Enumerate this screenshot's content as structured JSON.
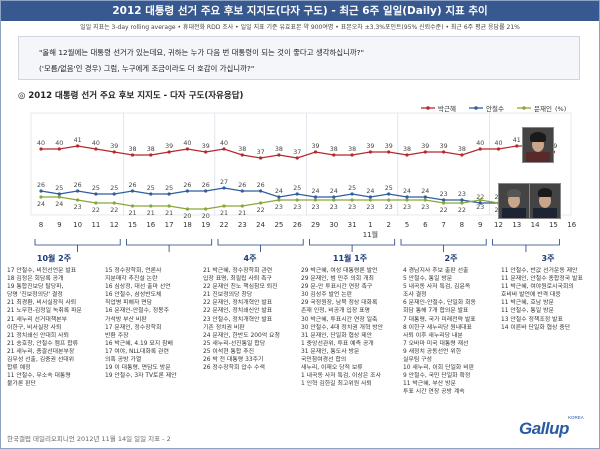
{
  "header": {
    "title": "2012 대통령 선거 주요 후보 지지도(다자 구도) - 최근 6주 일일(Daily) 지표 추이",
    "note": "일일 지표는 3-day rolling average • 휴대전화 RDD 조사 • 일일 지표 기준 유효표본 약 900여명 • 표본오차 ±3.3%포인트(95% 신뢰수준) • 최근 6주 평균 응답률 21%"
  },
  "question": {
    "line1": "\"올해 12월에는 대통령 선거가 있는데요, 귀하는 누가 다음 번 대통령이 되는 것이 좋다고 생각하십니까?\"",
    "line2": "('모름/없음'인 경우) 그럼, 누구에게 조금이라도 더 호감이 가십니까?\""
  },
  "chart_title": "◎ 2012 대통령 선거 주요 후보 지지도 - 다자 구도(자유응답)",
  "chart_data": {
    "type": "line",
    "x": [
      "8",
      "9",
      "10",
      "11",
      "12",
      "15",
      "16",
      "17",
      "18",
      "19",
      "22",
      "23",
      "24",
      "25",
      "26",
      "29",
      "30",
      "31",
      "1",
      "2",
      "5",
      "6",
      "7",
      "8",
      "9",
      "12",
      "13",
      "14",
      "15",
      "16"
    ],
    "month_marker": {
      "label": "11월",
      "index": 18
    },
    "unit": "(%)",
    "series": [
      {
        "name": "박근혜",
        "color": "#b5282e",
        "values": [
          40,
          40,
          41,
          40,
          39,
          38,
          38,
          39,
          40,
          39,
          40,
          38,
          37,
          38,
          37,
          39,
          38,
          38,
          39,
          39,
          38,
          39,
          39,
          38,
          40,
          40,
          41,
          41,
          39,
          null
        ]
      },
      {
        "name": "안철수",
        "color": "#2e5e9e",
        "values": [
          26,
          25,
          26,
          25,
          25,
          26,
          25,
          25,
          26,
          26,
          27,
          26,
          26,
          24,
          25,
          24,
          24,
          25,
          24,
          25,
          24,
          24,
          23,
          23,
          22,
          22,
          22,
          21,
          21,
          null
        ]
      },
      {
        "name": "문재인",
        "color": "#8aa63a",
        "values": [
          24,
          24,
          23,
          22,
          22,
          21,
          21,
          21,
          20,
          20,
          21,
          21,
          22,
          23,
          23,
          23,
          23,
          23,
          23,
          23,
          23,
          23,
          22,
          22,
          23,
          22,
          22,
          24,
          23,
          null
        ]
      }
    ]
  },
  "events": [
    {
      "head": "10월 2주",
      "items": [
        "17 안철수, 비전선언문 발표",
        "18 김정은 회담록 공개",
        "19 통합진보당 탈당파,",
        "당명 '진보정의당' 결정",
        "21 최경환, 비서실장직 사퇴",
        "21 노무현-김정일 녹취록 파문",
        "21 새누리 선거대책본부",
        "이한구, 비서실장 사퇴",
        "21 정치쇄신 안대희 사퇴",
        "21 송호창, 안철수 캠프 합류",
        "21 새누리, 총괄선대본부장",
        "김무성 선출, 김중권 선대위",
        "합류 예정",
        "11 안철수, 무소속 대통령",
        "불가론 판단"
      ]
    },
    {
      "head": "",
      "items": [
        "15 정수장학회, 언론사",
        "지분매각 추진설 논란",
        "16 심상정, 대선 출마 선언",
        "16 안철수, 삼성반도체",
        "직업병 피해자 면담",
        "16 문재인-안철수, 정봉주",
        "가석방 부산 비판",
        "17 문재인, 정수장학회",
        "반환 주장",
        "16 박근혜, 4.19 묘지 참배",
        "17 여야, NLL대화록 관련",
        "의혹 공방 가열",
        "19 이 대통령, 면담도 방문",
        "19 안철수, 3자 TV토론 제안"
      ]
    },
    {
      "head": "4주",
      "items": [
        "21 박근혜, 정수장학회 관련",
        "입장 표명, 최필립 사퇴 촉구",
        "22 문재인 친노 핵심참모 퇴진",
        "21 진보정의당 창당",
        "22 문재인, 정치개혁안 발표",
        "22 문재인, 정치쇄신안 발표",
        "23 안철수, 정치개혁안 발표",
        "기존 정치권 비판",
        "24 문재인, 한반도 200억 요청",
        "25 새누리-선진통일 합당",
        "25 이석현 통합 추진",
        "26 박 전 대통령 33주기",
        "26 정수장학회 압수 수색"
      ]
    },
    {
      "head": "11월 1주",
      "items": [
        "29 박근혜, 여성 대통령론 발언",
        "29 문재인, 범 민주 의회 개최",
        "29 문-안 투표시간 연장 촉구",
        "30 김성주 발언 논란",
        "29 국정원장, 남북 정상 대화록",
        "존재 인정, 비공개 입장 표명",
        "30 박근혜, 투표시간 연장 일축",
        "30 안철수, 4대 정치권 개혁 방안",
        "31 문재인, 단일화 협상 제안",
        "1 중앙선관위, 투표 예측 공개",
        "31 문재인, 통도사 방문",
        "국민참여경선 합의",
        "새누리, 이재오 당적 보류",
        "1 내곡동 사저 특검, 이상은 조사",
        "1 인혁 김한길 최고위원 사퇴"
      ]
    },
    {
      "head": "2주",
      "items": [
        "4 경남지사 후보 출판 선출",
        "5 안철수, 통일 방문",
        "5 내곡동 사저 특검, 김윤옥",
        "조사 결정",
        "6 문재인-안철수, 단일화 회동",
        "회담 통해 7개 합의문 발표",
        "7 대통령, 국가 미래전략 발표",
        "8 이한구 새누리당 원내대표",
        "사퇴 이후 새누리당 내분",
        "7 오바마 미국 대통령 재선",
        "9 새정치 공동선언 위한",
        "실무팀 구성",
        "10 새누리, 이회 단일화 비판",
        "9 안철수, 국민 단일화 확정",
        "11 박근혜, 부산 방문",
        "투표 시간 연장 공방 계속"
      ]
    },
    {
      "head": "3주",
      "items": [
        "11 안철수, 반값 선거운동 제안",
        "11 문재인, 안철수 종합정국 발표",
        "11 박근혜, 여야원로시국회의",
        "호비바 발언에 반격 대응",
        "11 박근혜, 호남 방문",
        "11 안철수, 통일 방문",
        "13 안철수 정책조정 발표",
        "14 이른바 단일화 협상 중단"
      ]
    }
  ],
  "legend_unit": "(%)",
  "footer": {
    "left": "한국갤럽 데일리오피니언 2012년 11월 14일 일일 지표 - 2",
    "logo": "Gallup",
    "logo_sub": "KOREA"
  }
}
